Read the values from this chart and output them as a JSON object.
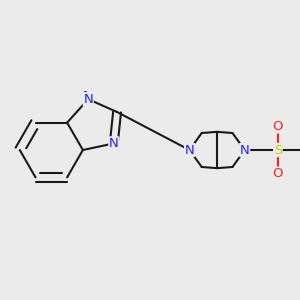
{
  "background_color": "#ebebeb",
  "bond_color": "#1a1a1a",
  "bond_width": 1.5,
  "atom_colors": {
    "N": "#2020ff",
    "O": "#ff2020",
    "S": "#cccc00",
    "C": "#1a1a1a"
  },
  "figsize": [
    3.0,
    3.0
  ],
  "dpi": 100
}
